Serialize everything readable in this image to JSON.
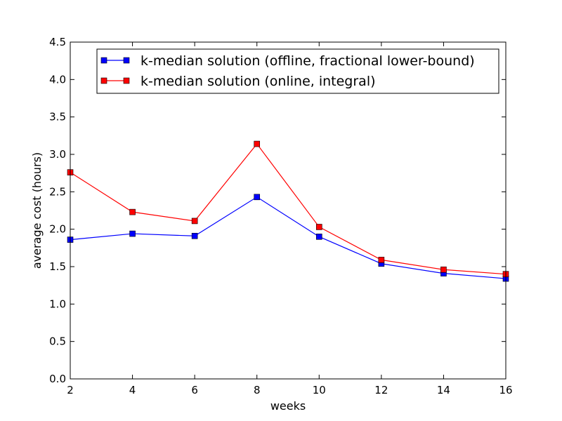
{
  "chart_data": {
    "type": "line",
    "title": "",
    "xlabel": "weeks",
    "ylabel": "average cost (hours)",
    "x": [
      2,
      4,
      6,
      8,
      10,
      12,
      14,
      16
    ],
    "xlim": [
      2,
      16
    ],
    "ylim": [
      0,
      4.5
    ],
    "xticks": [
      "2",
      "4",
      "6",
      "8",
      "10",
      "12",
      "14",
      "16"
    ],
    "yticks": [
      "0.0",
      "0.5",
      "1.0",
      "1.5",
      "2.0",
      "2.5",
      "3.0",
      "3.5",
      "4.0",
      "4.5"
    ],
    "grid": false,
    "legend_position": "top-right",
    "series": [
      {
        "name": "k-median solution (offline, fractional lower-bound)",
        "color": "#0000ff",
        "marker": "square",
        "values": [
          1.86,
          1.94,
          1.91,
          2.43,
          1.9,
          1.54,
          1.41,
          1.34
        ]
      },
      {
        "name": "k-median solution (online, integral)",
        "color": "#ff0000",
        "marker": "square",
        "values": [
          2.76,
          2.23,
          2.11,
          3.14,
          2.03,
          1.59,
          1.46,
          1.4
        ]
      }
    ]
  }
}
